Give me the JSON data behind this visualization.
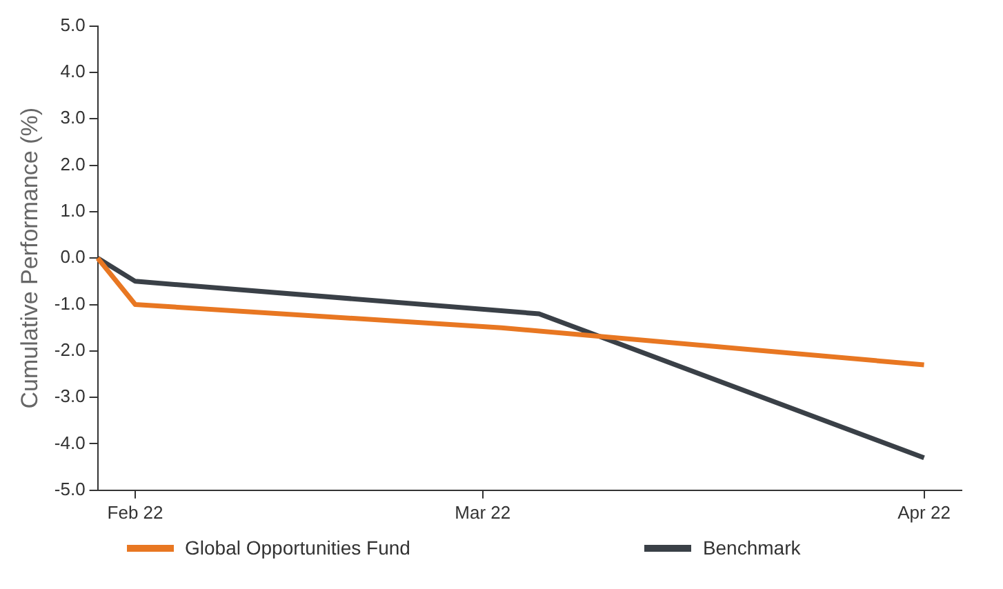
{
  "chart_data": {
    "type": "line",
    "ylabel": "Cumulative Performance (%)",
    "series": [
      {
        "name": "Global Opportunities Fund",
        "color": "#e87722",
        "x": [
          "2022-01-31",
          "2022-02-04",
          "2022-03-15",
          "2022-04-29"
        ],
        "values": [
          0,
          -1.0,
          -1.5,
          -2.3
        ]
      },
      {
        "name": "Benchmark",
        "color": "#3a4047",
        "x": [
          "2022-01-31",
          "2022-02-04",
          "2022-03-19",
          "2022-04-29"
        ],
        "values": [
          0,
          -0.5,
          -1.2,
          -4.3
        ]
      }
    ],
    "xlim": [
      "2022-01-31",
      "2022-05-03"
    ],
    "xticks": [
      {
        "value": "2022-02-04",
        "label": "Feb 22"
      },
      {
        "value": "2022-03-13",
        "label": "Mar 22"
      },
      {
        "value": "2022-04-29",
        "label": "Apr 22"
      }
    ],
    "ylim": [
      -5,
      5
    ],
    "yticks": [
      {
        "value": -5,
        "label": "-5.0"
      },
      {
        "value": -4,
        "label": "-4.0"
      },
      {
        "value": -3,
        "label": "-3.0"
      },
      {
        "value": -2,
        "label": "-2.0"
      },
      {
        "value": -1,
        "label": "-1.0"
      },
      {
        "value": 0,
        "label": "0.0"
      },
      {
        "value": 1,
        "label": "1.0"
      },
      {
        "value": 2,
        "label": "2.0"
      },
      {
        "value": 3,
        "label": "3.0"
      },
      {
        "value": 4,
        "label": "4.0"
      },
      {
        "value": 5,
        "label": "5.0"
      }
    ],
    "grid": false,
    "legend": "bottom",
    "marker": "none",
    "line_style": "solid"
  }
}
